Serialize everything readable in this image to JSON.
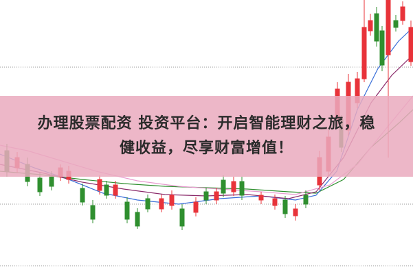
{
  "headline": {
    "line1": "办理股票配资 投资平台：开启智能理财之旅，稳",
    "line2": "健收益，尽享财富增值！"
  }
}
